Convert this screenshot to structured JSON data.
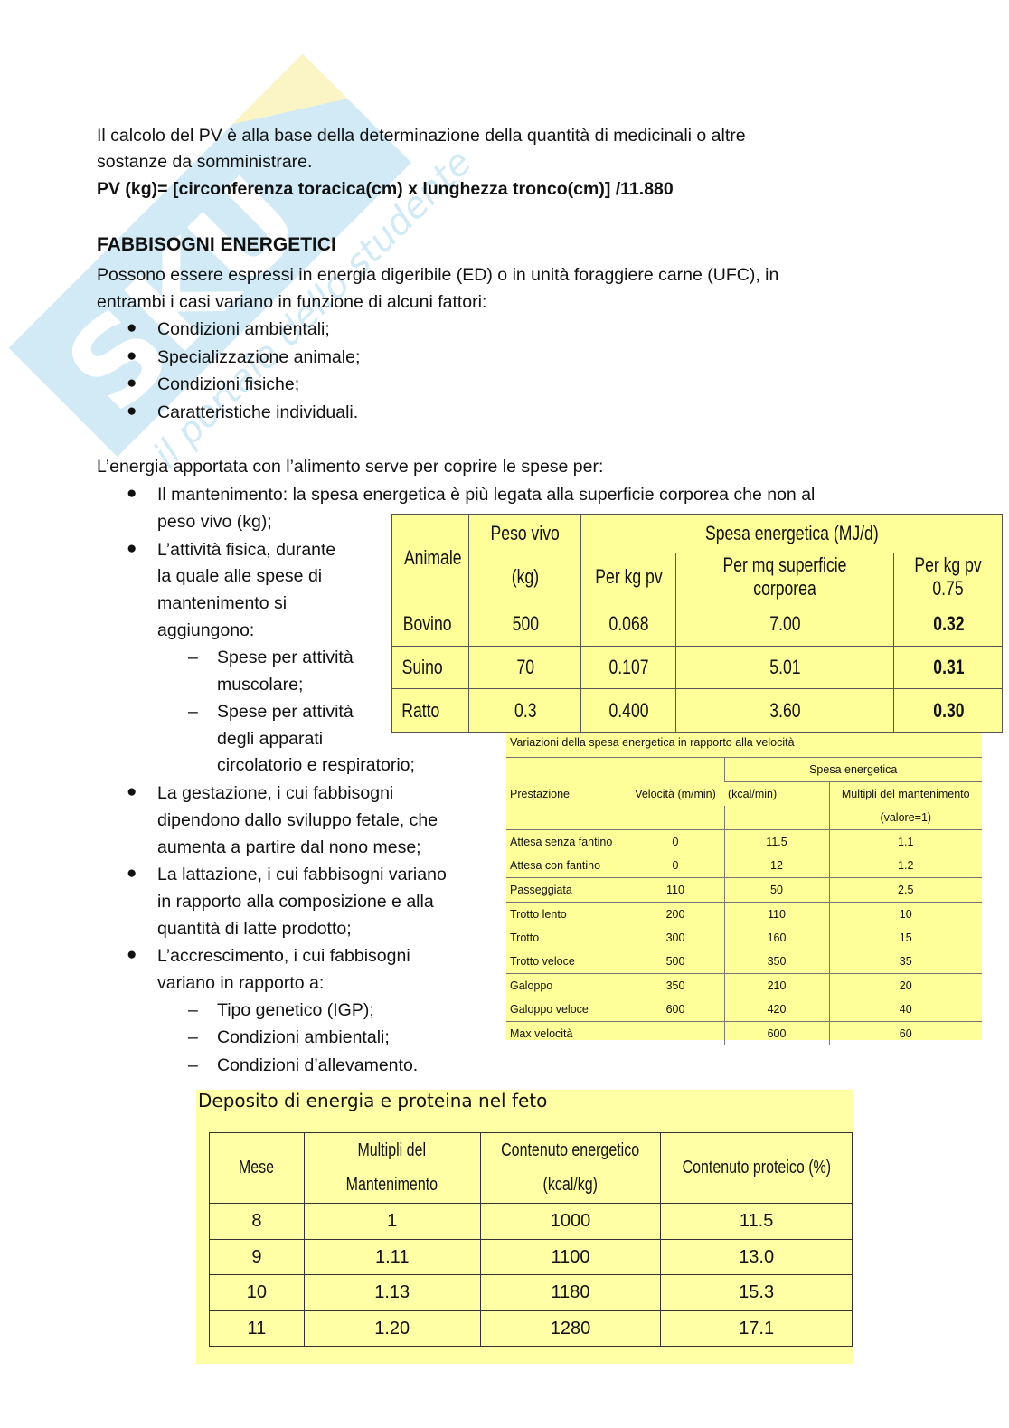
{
  "watermark": {
    "brand": "Skuola.net",
    "tagline": "il portale dello studente"
  },
  "intro": {
    "line1": "Il calcolo del PV è alla base della determinazione della quantità di medicinali o altre",
    "line2": "sostanze da somministrare.",
    "formula": "PV (kg)= [circonferenza toracica(cm) x lunghezza tronco(cm)] /11.880"
  },
  "section": {
    "heading": "FABBISOGNI ENERGETICI",
    "p1": "Possono essere espressi in energia digeribile (ED) o in unità foraggiere carne (UFC), in",
    "p2": "entrambi i casi variano in funzione di alcuni fattori:",
    "factors": [
      "Condizioni ambientali;",
      "Specializzazione animale;",
      "Condizioni fisiche;",
      "Caratteristiche individuali."
    ],
    "p3": "L’energia apportata con l’alimento serve per coprire le spese per:",
    "spese": {
      "mantenimento": [
        "Il mantenimento: la spesa energetica è più legata alla superficie corporea che non al",
        "peso vivo (kg);"
      ],
      "attivita": [
        "L’attività fisica, durante",
        "la quale alle spese di",
        "mantenimento si",
        "aggiungono:"
      ],
      "attivita_sub1": [
        "Spese per attività",
        "muscolare;"
      ],
      "attivita_sub2": [
        "Spese per attività",
        "degli apparati",
        "circolatorio e respiratorio;"
      ],
      "gestazione": [
        "La gestazione, i cui fabbisogni",
        "dipendono dallo sviluppo fetale, che",
        "aumenta a partire dal nono mese;"
      ],
      "lattazione": [
        "La lattazione, i cui fabbisogni variano",
        "in rapporto alla composizione e alla",
        "quantità di latte prodotto;"
      ],
      "accrescimento": [
        "L’accrescimento, i cui fabbisogni",
        "variano in rapporto a:"
      ],
      "accrescimento_sub": [
        "Tipo genetico (IGP);",
        "Condizioni ambientali;",
        "Condizioni d’allevamento."
      ]
    }
  },
  "table1": {
    "headers": {
      "animale": "Animale",
      "peso1": "Peso vivo",
      "peso2": "(kg)",
      "spesa": "Spesa energetica (MJ/d)",
      "c1": "Per kg pv",
      "c2": "Per mq superficie corporea",
      "c3": "Per kg pv 0.75"
    },
    "rows": [
      [
        "Bovino",
        "500",
        "0.068",
        "7.00",
        "0.32"
      ],
      [
        "Suino",
        "70",
        "0.107",
        "5.01",
        "0.31"
      ],
      [
        "Ratto",
        "0.3",
        "0.400",
        "3.60",
        "0.30"
      ]
    ]
  },
  "table2": {
    "title": "Variazioni della spesa energetica in rapporto alla velocità",
    "headers": {
      "prestazione": "Prestazione",
      "velocita": "Velocità (m/min)",
      "spesa": "Spesa energetica",
      "kcal": "(kcal/min)",
      "multipli1": "Multipli del mantenimento",
      "multipli2": "(valore=1)"
    },
    "rows": [
      [
        "Attesa senza fantino",
        "0",
        "11.5",
        "1.1"
      ],
      [
        "Attesa con fantino",
        "0",
        "12",
        "1.2"
      ],
      [
        "Passeggiata",
        "110",
        "50",
        "2.5"
      ],
      [
        "Trotto lento",
        "200",
        "110",
        "10"
      ],
      [
        "Trotto",
        "300",
        "160",
        "15"
      ],
      [
        "Trotto veloce",
        "500",
        "350",
        "35"
      ],
      [
        "Galoppo",
        "350",
        "210",
        "20"
      ],
      [
        "Galoppo veloce",
        "600",
        "420",
        "40"
      ],
      [
        "Max velocità",
        "",
        "600",
        "60"
      ]
    ]
  },
  "table3": {
    "title": "Deposito di energia e proteina nel feto",
    "headers": {
      "mese": "Mese",
      "mult1": "Multipli del",
      "mult2": "Mantenimento",
      "cont1": "Contenuto energetico",
      "cont2": "(kcal/kg)",
      "prot": "Contenuto proteico (%)"
    },
    "rows": [
      [
        "8",
        "1",
        "1000",
        "11.5"
      ],
      [
        "9",
        "1.11",
        "1100",
        "13.0"
      ],
      [
        "10",
        "1.13",
        "1180",
        "15.3"
      ],
      [
        "11",
        "1.20",
        "1280",
        "17.1"
      ]
    ]
  }
}
